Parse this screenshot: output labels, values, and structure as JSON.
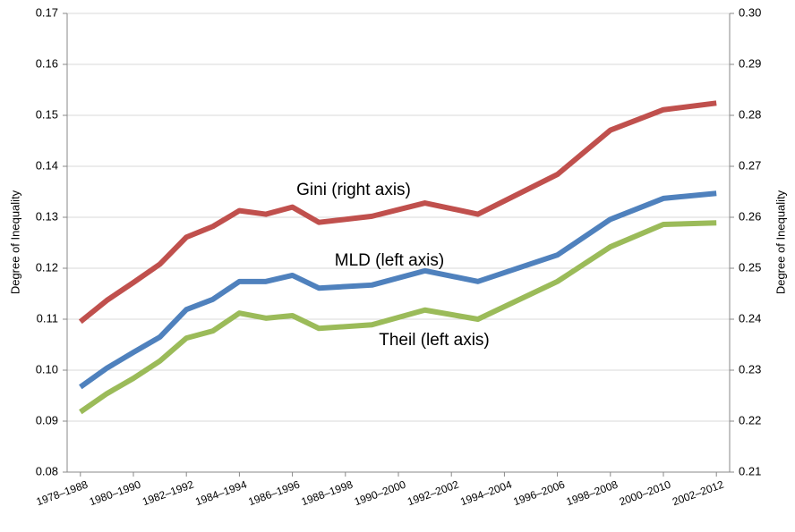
{
  "chart_data": {
    "type": "line",
    "y_label": "Degree of Inequality",
    "y2_label": "Degree of Inequality",
    "x": [
      1978,
      1979,
      1980,
      1981,
      1982,
      1983,
      1984,
      1985,
      1986,
      1987,
      1989,
      1991,
      1993,
      1996,
      1998,
      2000,
      2002
    ],
    "xlim": [
      1977.5,
      2002.5
    ],
    "xticks": [
      {
        "value": 1978,
        "label": "1978–1988"
      },
      {
        "value": 1980,
        "label": "1980–1990"
      },
      {
        "value": 1982,
        "label": "1982–1992"
      },
      {
        "value": 1984,
        "label": "1984–1994"
      },
      {
        "value": 1986,
        "label": "1986–1996"
      },
      {
        "value": 1988,
        "label": "1988–1998"
      },
      {
        "value": 1990,
        "label": "1990–2000"
      },
      {
        "value": 1992,
        "label": "1992–2002"
      },
      {
        "value": 1994,
        "label": "1994–2004"
      },
      {
        "value": 1996,
        "label": "1996–2006"
      },
      {
        "value": 1998,
        "label": "1998–2008"
      },
      {
        "value": 2000,
        "label": "2000–2010"
      },
      {
        "value": 2002,
        "label": "2002–2012"
      }
    ],
    "ylim": [
      0.08,
      0.17
    ],
    "yticks": [
      0.08,
      0.09,
      {
        "value": 0.1,
        "label": "0.10"
      },
      0.11,
      0.12,
      0.13,
      0.14,
      0.15,
      0.16,
      0.17
    ],
    "y2lim": [
      0.21,
      0.3
    ],
    "y2ticks": [
      0.21,
      0.22,
      0.23,
      0.24,
      0.25,
      0.26,
      0.27,
      0.28,
      0.29,
      {
        "value": 0.3,
        "label": "0.30"
      }
    ],
    "grid": true,
    "series": [
      {
        "name": "Gini",
        "color": "#c0504d",
        "axis": "y2",
        "values": [
          0.2395,
          0.2437,
          0.2472,
          0.2508,
          0.2561,
          0.2582,
          0.2613,
          0.2606,
          0.262,
          0.259,
          0.2602,
          0.2628,
          0.2606,
          0.2684,
          0.2771,
          0.2811,
          0.2824
        ]
      },
      {
        "name": "MLD",
        "color": "#4f81bd",
        "values": [
          0.0967,
          0.1004,
          0.1035,
          0.1065,
          0.1119,
          0.1139,
          0.1174,
          0.1174,
          0.1186,
          0.1161,
          0.1167,
          0.1195,
          0.1174,
          0.1226,
          0.1296,
          0.1337,
          0.1347
        ]
      },
      {
        "name": "Theil",
        "color": "#9bbb59",
        "values": [
          0.0918,
          0.0954,
          0.0984,
          0.1018,
          0.1063,
          0.1077,
          0.1112,
          0.1102,
          0.1107,
          0.1082,
          0.1089,
          0.1118,
          0.11,
          0.1174,
          0.1242,
          0.1286,
          0.1289
        ]
      }
    ],
    "annotations": [
      "Gini (right axis)",
      "MLD (left axis)",
      "Theil (left axis)"
    ]
  }
}
